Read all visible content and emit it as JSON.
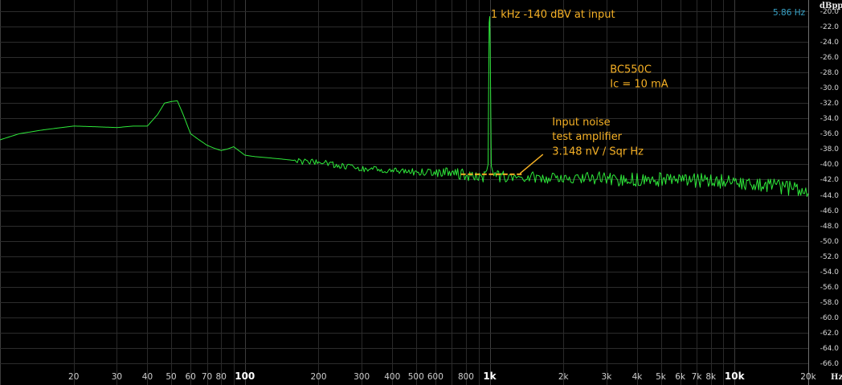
{
  "chart_data": {
    "type": "line",
    "xscale": "log",
    "xlim": [
      10,
      20000
    ],
    "ylim": [
      -66,
      -20
    ],
    "xlabel": "Hz",
    "ylabel": "dBpp",
    "resolution_label": "5.86 Hz",
    "yticks": [
      -20,
      -22,
      -24,
      -26,
      -28,
      -30,
      -32,
      -34,
      -36,
      -38,
      -40,
      -42,
      -44,
      -46,
      -48,
      -50,
      -52,
      -54,
      -56,
      -58,
      -60,
      -62,
      -64,
      -66
    ],
    "ytick_labels": [
      "-20.0",
      "-22.0",
      "-24.0",
      "-26.0",
      "-28.0",
      "-30.0",
      "-32.0",
      "-34.0",
      "-36.0",
      "-38.0",
      "-40.0",
      "-42.0",
      "-44.0",
      "-46.0",
      "-48.0",
      "-50.0",
      "-52.0",
      "-54.0",
      "-56.0",
      "-58.0",
      "-60.0",
      "-62.0",
      "-64.0",
      "-66.0"
    ],
    "xticks": [
      {
        "v": 20,
        "label": "20",
        "decade": false
      },
      {
        "v": 30,
        "label": "30",
        "decade": false
      },
      {
        "v": 40,
        "label": "40",
        "decade": false
      },
      {
        "v": 50,
        "label": "50",
        "decade": false
      },
      {
        "v": 60,
        "label": "60",
        "decade": false
      },
      {
        "v": 70,
        "label": "70",
        "decade": false
      },
      {
        "v": 80,
        "label": "80",
        "decade": false
      },
      {
        "v": 100,
        "label": "100",
        "decade": true
      },
      {
        "v": 200,
        "label": "200",
        "decade": false
      },
      {
        "v": 300,
        "label": "300",
        "decade": false
      },
      {
        "v": 400,
        "label": "400",
        "decade": false
      },
      {
        "v": 500,
        "label": "500",
        "decade": false
      },
      {
        "v": 600,
        "label": "600",
        "decade": false
      },
      {
        "v": 800,
        "label": "800",
        "decade": false
      },
      {
        "v": 1000,
        "label": "1k",
        "decade": true
      },
      {
        "v": 2000,
        "label": "2k",
        "decade": false
      },
      {
        "v": 3000,
        "label": "3k",
        "decade": false
      },
      {
        "v": 4000,
        "label": "4k",
        "decade": false
      },
      {
        "v": 5000,
        "label": "5k",
        "decade": false
      },
      {
        "v": 6000,
        "label": "6k",
        "decade": false
      },
      {
        "v": 7000,
        "label": "7k",
        "decade": false
      },
      {
        "v": 8000,
        "label": "8k",
        "decade": false
      },
      {
        "v": 10000,
        "label": "10k",
        "decade": true
      },
      {
        "v": 20000,
        "label": "20k",
        "decade": false
      }
    ],
    "series": [
      {
        "color": "#2ee83a",
        "x": [
          10,
          12,
          15,
          20,
          25,
          30,
          35,
          40,
          44,
          47,
          50,
          53,
          56,
          60,
          65,
          70,
          75,
          80,
          85,
          90,
          100,
          110,
          120,
          140,
          160,
          180,
          200,
          250,
          300,
          400,
          500,
          600,
          700,
          800,
          900,
          960,
          985,
          995,
          1000,
          1005,
          1015,
          1040,
          1100,
          1200,
          1500,
          2000,
          3000,
          4000,
          5000,
          6000,
          7000,
          8000,
          10000,
          12000,
          15000,
          18000,
          20000
        ],
        "y": [
          -36.8,
          -36.0,
          -35.5,
          -35.0,
          -35.1,
          -35.2,
          -35.0,
          -35.0,
          -33.5,
          -32.0,
          -31.8,
          -31.7,
          -33.5,
          -36.0,
          -36.8,
          -37.5,
          -37.9,
          -38.2,
          -38.0,
          -37.7,
          -38.8,
          -39.0,
          -39.1,
          -39.3,
          -39.5,
          -39.7,
          -39.8,
          -40.2,
          -40.5,
          -40.8,
          -41.0,
          -41.1,
          -41.2,
          -41.4,
          -41.5,
          -41.6,
          -40.0,
          -21.5,
          -20.7,
          -25.0,
          -40.2,
          -41.5,
          -41.6,
          -41.7,
          -41.7,
          -41.8,
          -41.9,
          -42.0,
          -42.0,
          -42.1,
          -42.1,
          -42.2,
          -42.3,
          -42.6,
          -42.9,
          -43.3,
          -43.8
        ]
      }
    ],
    "noise_markers": {
      "color": "#f5b025",
      "x_range": [
        780,
        1320
      ],
      "level": -41.3,
      "count": 9
    },
    "annotations": [
      {
        "text": "1 kHz -140 dBV at input",
        "x": 1010,
        "y": -20.3
      },
      {
        "text": "BC550C",
        "x": 3100,
        "y": -27.5
      },
      {
        "text": "Ic = 10 mA",
        "x": 3100,
        "y": -29.4
      },
      {
        "text": "Input noise",
        "x": 1800,
        "y": -34.4
      },
      {
        "text": "test amplifier",
        "x": 1800,
        "y": -36.3
      },
      {
        "text": "3.148 nV / Sqr Hz",
        "x": 1800,
        "y": -38.2
      }
    ],
    "leader_line": {
      "from": [
        1330,
        -41.2
      ],
      "to": [
        1650,
        -38.7
      ]
    }
  }
}
